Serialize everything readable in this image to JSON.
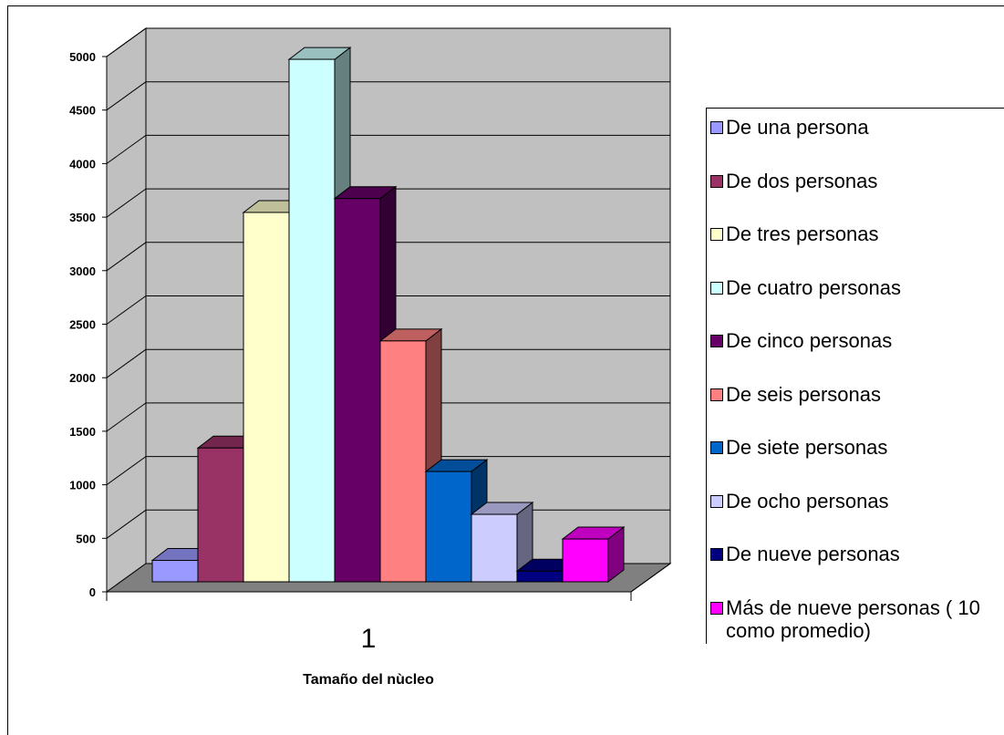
{
  "chart_data": {
    "type": "bar",
    "categories": [
      "1"
    ],
    "xlabel": "Tamaño del nùcleo",
    "ylabel": "",
    "ylim": [
      0,
      5000
    ],
    "yticks": [
      0,
      500,
      1000,
      1500,
      2000,
      2500,
      3000,
      3500,
      4000,
      4500,
      5000
    ],
    "grid": true,
    "legend_position": "right",
    "series": [
      {
        "name": "De una persona",
        "values": [
          200
        ],
        "color": "#9999FF"
      },
      {
        "name": "De dos personas",
        "values": [
          1250
        ],
        "color": "#993366"
      },
      {
        "name": "De tres personas",
        "values": [
          3450
        ],
        "color": "#FFFFCC"
      },
      {
        "name": "De cuatro personas",
        "values": [
          4880
        ],
        "color": "#CCFFFF"
      },
      {
        "name": "De cinco personas",
        "values": [
          3580
        ],
        "color": "#660066"
      },
      {
        "name": "De seis personas",
        "values": [
          2250
        ],
        "color": "#FF8080"
      },
      {
        "name": "De siete personas",
        "values": [
          1030
        ],
        "color": "#0066CC"
      },
      {
        "name": "De ocho personas",
        "values": [
          630
        ],
        "color": "#CCCCFF"
      },
      {
        "name": "De nueve personas",
        "values": [
          100
        ],
        "color": "#000080"
      },
      {
        "name": "Más de nueve personas ( 10 como promedio)",
        "values": [
          400
        ],
        "color": "#FF00FF"
      }
    ]
  }
}
